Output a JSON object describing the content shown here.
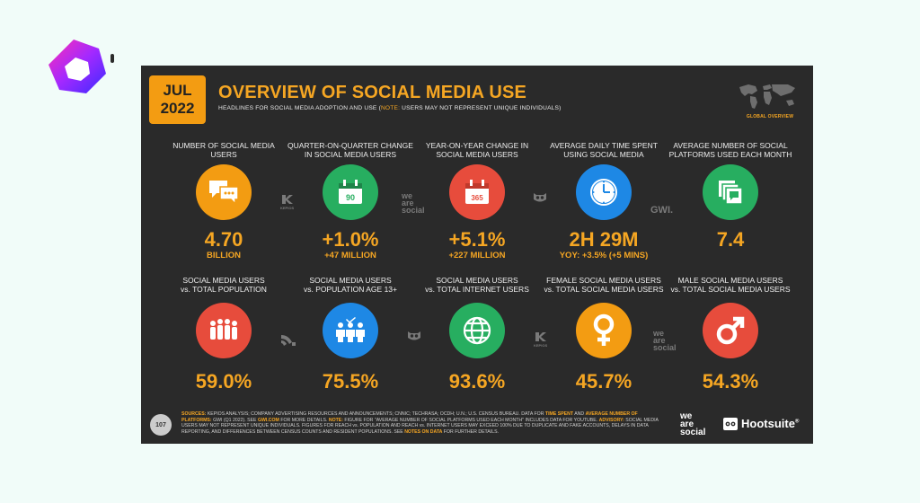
{
  "header": {
    "date_line1": "JUL",
    "date_line2": "2022",
    "title": "OVERVIEW OF SOCIAL MEDIA USE",
    "subtitle_pre": "HEADLINES FOR SOCIAL MEDIA ADOPTION AND USE (",
    "subtitle_note": "NOTE:",
    "subtitle_post": " USERS MAY NOT REPRESENT UNIQUE INDIVIDUALS)",
    "map_label": "GLOBAL OVERVIEW"
  },
  "row1": [
    {
      "label": "NUMBER OF SOCIAL MEDIA USERS",
      "value": "4.70",
      "sub": "BILLION",
      "color": "#f39c12",
      "icon": "speech-bubbles-icon"
    },
    {
      "label": "QUARTER-ON-QUARTER CHANGE IN SOCIAL MEDIA USERS",
      "value": "+1.0%",
      "sub": "+47 MILLION",
      "color": "#27ae60",
      "icon": "calendar-icon",
      "icon_text": "90"
    },
    {
      "label": "YEAR-ON-YEAR CHANGE IN SOCIAL MEDIA USERS",
      "value": "+5.1%",
      "sub": "+227 MILLION",
      "color": "#e74c3c",
      "icon": "calendar-icon",
      "icon_text": "365"
    },
    {
      "label": "AVERAGE DAILY TIME SPENT USING SOCIAL MEDIA",
      "value": "2H 29M",
      "sub": "YOY: +3.5% (+5 MINS)",
      "color": "#1e88e5",
      "icon": "clock-icon"
    },
    {
      "label": "AVERAGE NUMBER OF SOCIAL PLATFORMS USED EACH MONTH",
      "value": "7.4",
      "sub": "",
      "color": "#27ae60",
      "icon": "stacked-windows-icon"
    }
  ],
  "row2": [
    {
      "label_a": "SOCIAL MEDIA USERS",
      "label_b": "vs. TOTAL POPULATION",
      "value": "59.0%",
      "color": "#e74c3c",
      "icon": "population-icon"
    },
    {
      "label_a": "SOCIAL MEDIA USERS",
      "label_b": "vs. POPULATION AGE 13+",
      "value": "75.5%",
      "color": "#1e88e5",
      "icon": "people-check-icon"
    },
    {
      "label_a": "SOCIAL MEDIA USERS",
      "label_b": "vs. TOTAL INTERNET USERS",
      "value": "93.6%",
      "color": "#27ae60",
      "icon": "globe-icon"
    },
    {
      "label_a": "FEMALE SOCIAL MEDIA USERS",
      "label_b": "vs. TOTAL SOCIAL MEDIA USERS",
      "value": "45.7%",
      "color": "#f39c12",
      "icon": "female-icon"
    },
    {
      "label_a": "MALE SOCIAL MEDIA USERS",
      "label_b": "vs. TOTAL SOCIAL MEDIA USERS",
      "value": "54.3%",
      "color": "#e74c3c",
      "icon": "male-icon"
    }
  ],
  "partners": {
    "kepios": "KEPIOS",
    "we": "we",
    "are": "are",
    "social": "social",
    "gwi": "GWI."
  },
  "footer": {
    "page_number": "107",
    "sources_label": "SOURCES:",
    "sources_text1": " KEPIOS ANALYSIS; COMPANY ADVERTISING RESOURCES AND ANNOUNCEMENTS; CNNIC; TECHRASA; OCDH; U.N.; U.S. CENSUS BUREAU. DATA FOR ",
    "time_spent": "TIME SPENT",
    "and": " AND ",
    "avg_number": "AVERAGE NUMBER OF PLATFORMS:",
    "sources_text2": " GWI (Q1 2022). SEE ",
    "gwi_link": "GWI.COM",
    "sources_text3": " FOR MORE DETAILS. ",
    "note_label": "NOTE:",
    "sources_text4": " FIGURE FOR \"AVERAGE NUMBER OF SOCIAL PLATFORMS USED EACH MONTH\" INCLUDES DATA FOR YOUTUBE. ",
    "advisory_label": "ADVISORY:",
    "sources_text5": " SOCIAL MEDIA USERS MAY NOT REPRESENT UNIQUE INDIVIDUALS. FIGURES FOR REACH vs. POPULATION AND REACH vs. INTERNET USERS MAY EXCEED 100% DUE TO DUPLICATE AND FAKE ACCOUNTS, DELAYS IN DATA REPORTING, AND DIFFERENCES BETWEEN CENSUS COUNTS AND RESIDENT POPULATIONS. SEE ",
    "notes_on_data": "NOTES ON DATA",
    "sources_text6": " FOR FURTHER DETAILS.",
    "we": "we",
    "are": "are",
    "social": "social",
    "hootsuite": "Hootsuite",
    "reg": "®"
  }
}
